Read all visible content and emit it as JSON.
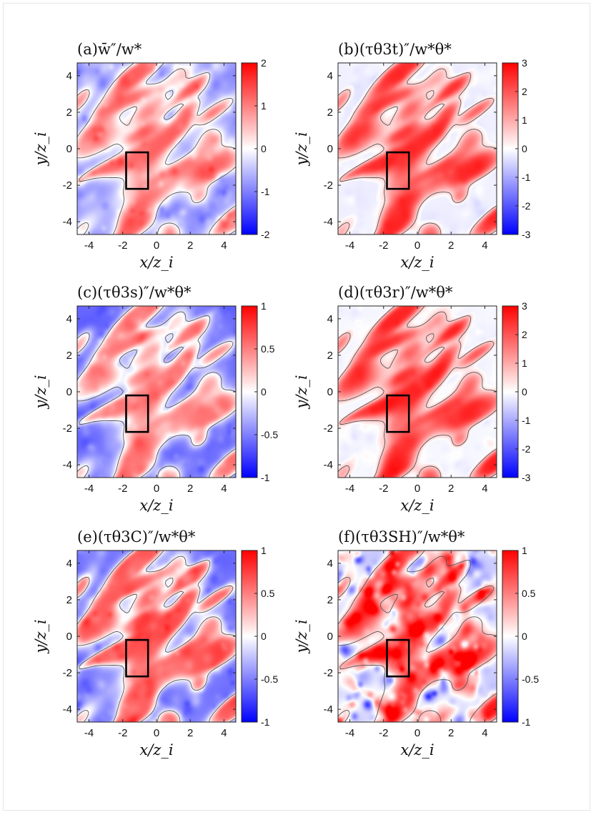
{
  "figure": {
    "colors": {
      "negative": "#0000ff",
      "zero": "#ffffff",
      "positive": "#ff0000",
      "contour": "#555555",
      "box": "#000000"
    },
    "x_axis_label": "x/z_i",
    "y_axis_label": "y/z_i",
    "x_ticks": [
      "-4",
      "-2",
      "0",
      "2",
      "4"
    ],
    "y_ticks": [
      "4",
      "2",
      "0",
      "-2",
      "-4"
    ]
  },
  "chart_data": [
    {
      "type": "heatmap",
      "panel": "a",
      "title": "(a)w̄″/w*",
      "xlim": [
        -4.7,
        4.7
      ],
      "ylim": [
        -4.7,
        4.7
      ],
      "x_ticks": [
        -4,
        -2,
        0,
        2,
        4
      ],
      "y_ticks": [
        -4,
        -2,
        0,
        2,
        4
      ],
      "colorbar": {
        "min": -2,
        "max": 2,
        "ticks": [
          2,
          1,
          0,
          -1,
          -2
        ],
        "tick_labels": [
          "2",
          "1",
          "0",
          "-1",
          "-2"
        ]
      },
      "highlight_box": {
        "x": [
          -1.8,
          -0.5
        ],
        "y": [
          -2.2,
          -0.2
        ]
      },
      "background_bias": -0.2,
      "noise": 0.15
    },
    {
      "type": "heatmap",
      "panel": "b",
      "title": "(b)(τθ3t)″/w*θ*",
      "xlim": [
        -4.7,
        4.7
      ],
      "ylim": [
        -4.7,
        4.7
      ],
      "x_ticks": [
        -4,
        -2,
        0,
        2,
        4
      ],
      "y_ticks": [
        -4,
        -2,
        0,
        2,
        4
      ],
      "colorbar": {
        "min": -3,
        "max": 3,
        "ticks": [
          3,
          2,
          1,
          0,
          -1,
          -2,
          -3
        ],
        "tick_labels": [
          "3",
          "2",
          "1",
          "0",
          "-1",
          "-2",
          "-3"
        ]
      },
      "highlight_box": {
        "x": [
          -1.8,
          -0.5
        ],
        "y": [
          -2.2,
          -0.2
        ]
      },
      "background_bias": -0.06,
      "noise": 0.05
    },
    {
      "type": "heatmap",
      "panel": "c",
      "title": "(c)(τθ3s)″/w*θ*",
      "xlim": [
        -4.7,
        4.7
      ],
      "ylim": [
        -4.7,
        4.7
      ],
      "x_ticks": [
        -4,
        -2,
        0,
        2,
        4
      ],
      "y_ticks": [
        -4,
        -2,
        0,
        2,
        4
      ],
      "colorbar": {
        "min": -1,
        "max": 1,
        "ticks": [
          1,
          0.5,
          0,
          -0.5,
          -1
        ],
        "tick_labels": [
          "1",
          "0.5",
          "0",
          "-0.5",
          "-1"
        ]
      },
      "highlight_box": {
        "x": [
          -1.8,
          -0.5
        ],
        "y": [
          -2.2,
          -0.2
        ]
      },
      "background_bias": -0.3,
      "noise": 0.12
    },
    {
      "type": "heatmap",
      "panel": "d",
      "title": "(d)(τθ3r)″/w*θ*",
      "xlim": [
        -4.7,
        4.7
      ],
      "ylim": [
        -4.7,
        4.7
      ],
      "x_ticks": [
        -4,
        -2,
        0,
        2,
        4
      ],
      "y_ticks": [
        -4,
        -2,
        0,
        2,
        4
      ],
      "colorbar": {
        "min": -3,
        "max": 3,
        "ticks": [
          3,
          2,
          1,
          0,
          -1,
          -2,
          -3
        ],
        "tick_labels": [
          "3",
          "2",
          "1",
          "0",
          "-1",
          "-2",
          "-3"
        ]
      },
      "highlight_box": {
        "x": [
          -1.8,
          -0.5
        ],
        "y": [
          -2.2,
          -0.2
        ]
      },
      "background_bias": -0.03,
      "noise": 0.05
    },
    {
      "type": "heatmap",
      "panel": "e",
      "title": "(e)(τθ3C)″/w*θ*",
      "xlim": [
        -4.7,
        4.7
      ],
      "ylim": [
        -4.7,
        4.7
      ],
      "x_ticks": [
        -4,
        -2,
        0,
        2,
        4
      ],
      "y_ticks": [
        -4,
        -2,
        0,
        2,
        4
      ],
      "colorbar": {
        "min": -1,
        "max": 1,
        "ticks": [
          1,
          0.5,
          0,
          -0.5,
          -1
        ],
        "tick_labels": [
          "1",
          "0.5",
          "0",
          "-0.5",
          "-1"
        ]
      },
      "highlight_box": {
        "x": [
          -1.8,
          -0.5
        ],
        "y": [
          -2.2,
          -0.2
        ]
      },
      "background_bias": -0.18,
      "noise": 0.14
    },
    {
      "type": "heatmap",
      "panel": "f",
      "title": "(f)(τθ3SH)″/w*θ*",
      "xlim": [
        -4.7,
        4.7
      ],
      "ylim": [
        -4.7,
        4.7
      ],
      "x_ticks": [
        -4,
        -2,
        0,
        2,
        4
      ],
      "y_ticks": [
        -4,
        -2,
        0,
        2,
        4
      ],
      "colorbar": {
        "min": -1,
        "max": 1,
        "ticks": [
          1,
          0.5,
          0,
          -0.5,
          -1
        ],
        "tick_labels": [
          "1",
          "0.5",
          "0",
          "-0.5",
          "-1"
        ]
      },
      "highlight_box": {
        "x": [
          -1.8,
          -0.5
        ],
        "y": [
          -2.2,
          -0.2
        ]
      },
      "background_bias": 0.0,
      "noise": 0.45
    }
  ]
}
